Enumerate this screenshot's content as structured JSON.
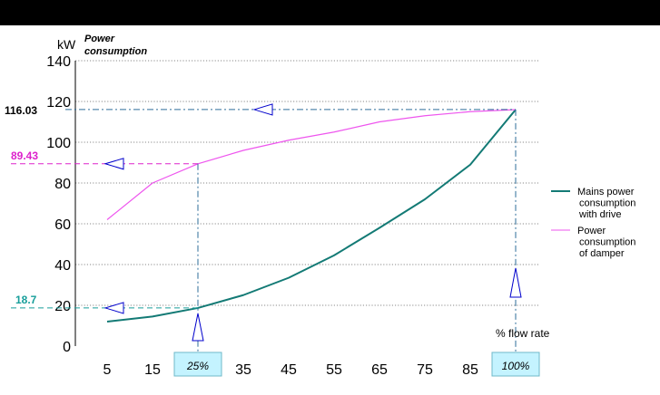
{
  "chart_data": {
    "type": "line",
    "unit_label": "kW",
    "title_lines": [
      "Power",
      "consumption"
    ],
    "xlabel": "% flow rate",
    "ylim": [
      0,
      140
    ],
    "y_ticks": [
      "0",
      "20",
      "40",
      "60",
      "80",
      "100",
      "120",
      "140"
    ],
    "categories": [
      "5",
      "15",
      "25%",
      "35",
      "45",
      "55",
      "65",
      "75",
      "85",
      "100%"
    ],
    "highlighted_categories": [
      "25%",
      "100%"
    ],
    "grid": "horizontal dotted",
    "legend_position": "right",
    "series": [
      {
        "name_lines": [
          "Mains power",
          "consumption",
          "with drive"
        ],
        "color": "#137a75",
        "x": [
          5,
          15,
          25,
          35,
          45,
          55,
          65,
          75,
          85,
          100
        ],
        "values": [
          12,
          14.5,
          18.7,
          25,
          33.5,
          44.5,
          58,
          72,
          89,
          116
        ]
      },
      {
        "name_lines": [
          "Power",
          "consumption",
          "of damper"
        ],
        "color": "#ee55ee",
        "x": [
          5,
          15,
          25,
          35,
          45,
          55,
          65,
          75,
          85,
          100
        ],
        "values": [
          62,
          80,
          89.43,
          96,
          101,
          105,
          110,
          113,
          115,
          116
        ]
      }
    ],
    "annotations": [
      {
        "label": "116.03",
        "value": 116.03,
        "at_x": 100,
        "color": "#000000",
        "line_color": "#2d6e9a"
      },
      {
        "label": "89.43",
        "value": 89.43,
        "at_x": 25,
        "color": "#dd22cc",
        "line_color": "#dd22cc"
      },
      {
        "label": "18.7",
        "value": 18.7,
        "at_x": 25,
        "color": "#179e9a",
        "line_color": "#179e9a"
      }
    ]
  }
}
